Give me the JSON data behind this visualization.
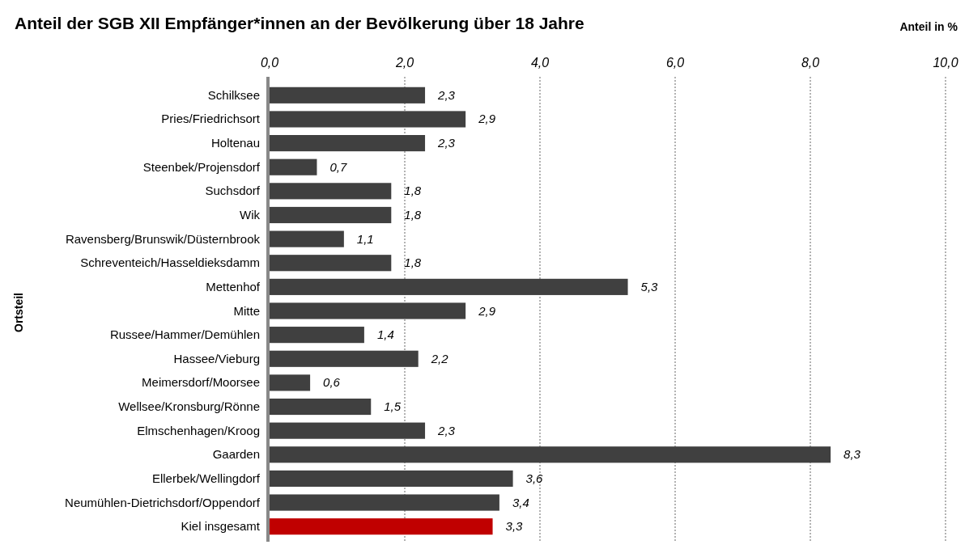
{
  "chart_data": {
    "type": "bar",
    "orientation": "horizontal",
    "title": "Anteil der SGB XII Empfänger*innen an der Bevölkerung über 18 Jahre",
    "xlabel": "Anteil in %",
    "ylabel": "Ortsteil",
    "categories": [
      "Schilksee",
      "Pries/Friedrichsort",
      "Holtenau",
      "Steenbek/Projensdorf",
      "Suchsdorf",
      "Wik",
      "Ravensberg/Brunswik/Düsternbrook",
      "Schreventeich/Hasseldieksdamm",
      "Mettenhof",
      "Mitte",
      "Russee/Hammer/Demühlen",
      "Hassee/Vieburg",
      "Meimersdorf/Moorsee",
      "Wellsee/Kronsburg/Rönne",
      "Elmschenhagen/Kroog",
      "Gaarden",
      "Ellerbek/Wellingdorf",
      "Neumühlen-Dietrichsdorf/Oppendorf",
      "Kiel insgesamt"
    ],
    "values": [
      2.3,
      2.9,
      2.3,
      0.7,
      1.8,
      1.8,
      1.1,
      1.8,
      5.3,
      2.9,
      1.4,
      2.2,
      0.6,
      1.5,
      2.3,
      8.3,
      3.6,
      3.4,
      3.3
    ],
    "value_labels": [
      "2,3",
      "2,9",
      "2,3",
      "0,7",
      "1,8",
      "1,8",
      "1,1",
      "1,8",
      "5,3",
      "2,9",
      "1,4",
      "2,2",
      "0,6",
      "1,5",
      "2,3",
      "8,3",
      "3,6",
      "3,4",
      "3,3"
    ],
    "colors": [
      "#404040",
      "#404040",
      "#404040",
      "#404040",
      "#404040",
      "#404040",
      "#404040",
      "#404040",
      "#404040",
      "#404040",
      "#404040",
      "#404040",
      "#404040",
      "#404040",
      "#404040",
      "#404040",
      "#404040",
      "#404040",
      "#c00000"
    ],
    "xlim": [
      0,
      10
    ],
    "xticks": [
      {
        "value": 0,
        "label": "0,0"
      },
      {
        "value": 2,
        "label": "2,0"
      },
      {
        "value": 4,
        "label": "4,0"
      },
      {
        "value": 6,
        "label": "6,0"
      },
      {
        "value": 8,
        "label": "8,0"
      },
      {
        "value": 10,
        "label": "10,0"
      }
    ],
    "grid": "x"
  }
}
